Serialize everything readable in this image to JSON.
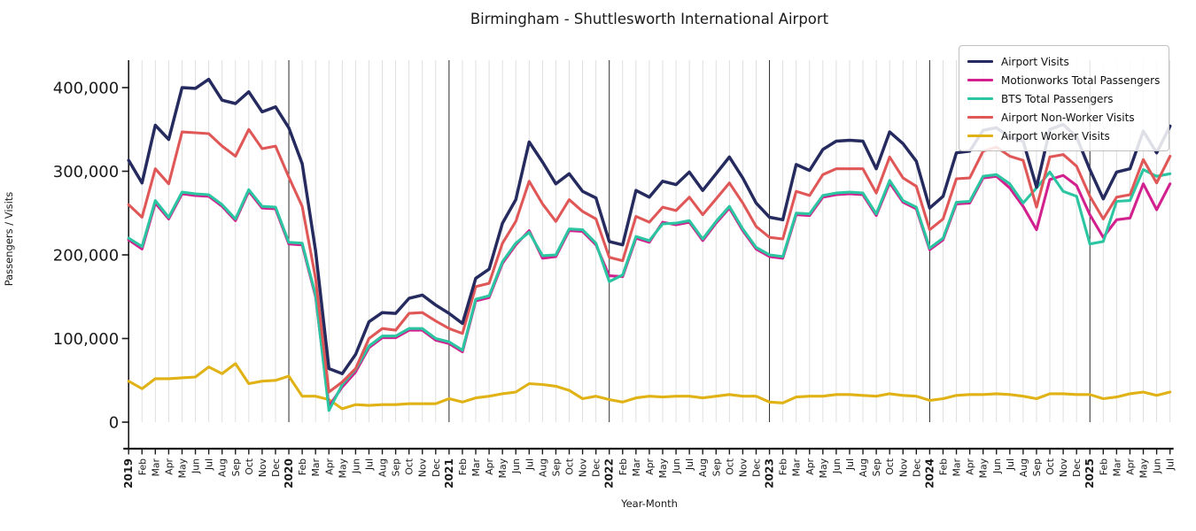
{
  "chart_data": {
    "type": "line",
    "title": "Birmingham - Shuttlesworth International Airport",
    "xlabel": "Year-Month",
    "ylabel": "Passengers / Visits",
    "ylim": [
      0,
      430000
    ],
    "yticks": [
      0,
      100000,
      200000,
      300000,
      400000
    ],
    "grid": "vertical gridline per month (light gray), darker vertical line at each January",
    "legend_position": "upper right",
    "x_labels": [
      "2019",
      "Feb",
      "Mar",
      "Apr",
      "May",
      "Jun",
      "Jul",
      "Aug",
      "Sep",
      "Oct",
      "Nov",
      "Dec",
      "2020",
      "Feb",
      "Mar",
      "Apr",
      "May",
      "Jun",
      "Jul",
      "Aug",
      "Sep",
      "Oct",
      "Nov",
      "Dec",
      "2021",
      "Feb",
      "Mar",
      "Apr",
      "May",
      "Jun",
      "Jul",
      "Aug",
      "Sep",
      "Oct",
      "Nov",
      "Dec",
      "2022",
      "Feb",
      "Mar",
      "Apr",
      "May",
      "Jun",
      "Jul",
      "Aug",
      "Sep",
      "Oct",
      "Nov",
      "Dec",
      "2023",
      "Feb",
      "Mar",
      "Apr",
      "May",
      "Jun",
      "Jul",
      "Aug",
      "Sep",
      "Oct",
      "Nov",
      "Dec",
      "2024",
      "Feb",
      "Mar",
      "Apr",
      "May",
      "Jun",
      "Jul",
      "Aug",
      "Sep",
      "Oct",
      "Nov",
      "Dec",
      "2025",
      "Feb",
      "Mar",
      "Apr",
      "May",
      "Jun",
      "Jul"
    ],
    "series": [
      {
        "name": "Airport Visits",
        "color": "#262b5f",
        "values": [
          313000,
          286000,
          355000,
          338000,
          400000,
          399000,
          410000,
          385000,
          381000,
          395000,
          371000,
          377000,
          352000,
          309000,
          205000,
          64000,
          58000,
          81000,
          120000,
          131000,
          130000,
          148000,
          152000,
          140000,
          130000,
          118000,
          172000,
          183000,
          238000,
          266000,
          335000,
          311000,
          285000,
          297000,
          276000,
          268000,
          216000,
          212000,
          277000,
          269000,
          288000,
          284000,
          299000,
          277000,
          297000,
          317000,
          292000,
          262000,
          245000,
          242000,
          308000,
          301000,
          326000,
          336000,
          337000,
          336000,
          303000,
          347000,
          333000,
          312000,
          256000,
          270000,
          322000,
          324000,
          349000,
          352000,
          341000,
          336000,
          281000,
          350000,
          356000,
          341000,
          302000,
          267000,
          299000,
          303000,
          348000,
          322000,
          354000
        ]
      },
      {
        "name": "Motionworks Total Passengers",
        "color": "#d2208e",
        "values": [
          218000,
          207000,
          262000,
          243000,
          273000,
          271000,
          270000,
          258000,
          241000,
          276000,
          256000,
          255000,
          213000,
          212000,
          150000,
          19000,
          42000,
          60000,
          89000,
          101000,
          101000,
          110000,
          110000,
          98000,
          94000,
          84000,
          145000,
          149000,
          190000,
          212000,
          229000,
          196000,
          198000,
          229000,
          228000,
          212000,
          175000,
          174000,
          220000,
          215000,
          239000,
          236000,
          239000,
          217000,
          238000,
          256000,
          229000,
          207000,
          198000,
          196000,
          248000,
          247000,
          269000,
          272000,
          273000,
          272000,
          247000,
          286000,
          263000,
          255000,
          206000,
          218000,
          261000,
          262000,
          292000,
          294000,
          280000,
          258000,
          230000,
          290000,
          295000,
          283000,
          248000,
          221000,
          242000,
          244000,
          285000,
          254000,
          285000
        ]
      },
      {
        "name": "BTS Total Passengers",
        "color": "#2bc5a2",
        "values": [
          220000,
          210000,
          265000,
          245000,
          275000,
          273000,
          272000,
          260000,
          243000,
          278000,
          258000,
          257000,
          215000,
          214000,
          152000,
          14000,
          45000,
          63000,
          91000,
          103000,
          103000,
          112000,
          112000,
          100000,
          96000,
          86000,
          147000,
          151000,
          192000,
          214000,
          227000,
          199000,
          200000,
          231000,
          230000,
          214000,
          168000,
          176000,
          222000,
          217000,
          237000,
          238000,
          241000,
          219000,
          240000,
          258000,
          231000,
          209000,
          200000,
          198000,
          250000,
          249000,
          271000,
          274000,
          275000,
          274000,
          249000,
          289000,
          265000,
          257000,
          208000,
          220000,
          263000,
          264000,
          294000,
          296000,
          285000,
          262000,
          280000,
          299000,
          276000,
          270000,
          213000,
          216000,
          264000,
          265000,
          302000,
          294000,
          297000
        ]
      },
      {
        "name": "Airport Non-Worker Visits",
        "color": "#e05757",
        "values": [
          260000,
          245000,
          303000,
          285000,
          347000,
          346000,
          345000,
          330000,
          318000,
          350000,
          327000,
          330000,
          293000,
          258000,
          172000,
          36000,
          48000,
          64000,
          100000,
          112000,
          110000,
          130000,
          131000,
          121000,
          112000,
          106000,
          162000,
          166000,
          214000,
          240000,
          288000,
          261000,
          240000,
          266000,
          252000,
          243000,
          197000,
          193000,
          246000,
          239000,
          257000,
          253000,
          269000,
          248000,
          267000,
          286000,
          262000,
          234000,
          221000,
          219000,
          276000,
          271000,
          296000,
          303000,
          303000,
          303000,
          274000,
          317000,
          292000,
          282000,
          230000,
          243000,
          291000,
          292000,
          324000,
          329000,
          318000,
          313000,
          257000,
          317000,
          320000,
          306000,
          270000,
          243000,
          269000,
          272000,
          314000,
          286000,
          318000
        ]
      },
      {
        "name": "Airport Worker Visits",
        "color": "#e0b216",
        "values": [
          49000,
          40000,
          52000,
          52000,
          53000,
          54000,
          66000,
          58000,
          70000,
          46000,
          49000,
          50000,
          55000,
          31000,
          31000,
          27000,
          16000,
          21000,
          20000,
          21000,
          21000,
          22000,
          22000,
          22000,
          28000,
          24000,
          29000,
          31000,
          34000,
          36000,
          46000,
          45000,
          43000,
          38000,
          28000,
          31000,
          27000,
          24000,
          29000,
          31000,
          30000,
          31000,
          31000,
          29000,
          31000,
          33000,
          31000,
          31000,
          24000,
          23000,
          30000,
          31000,
          31000,
          33000,
          33000,
          32000,
          31000,
          34000,
          32000,
          31000,
          26000,
          28000,
          32000,
          33000,
          33000,
          34000,
          33000,
          31000,
          28000,
          34000,
          34000,
          33000,
          33000,
          28000,
          30000,
          34000,
          36000,
          32000,
          36000
        ]
      }
    ]
  }
}
